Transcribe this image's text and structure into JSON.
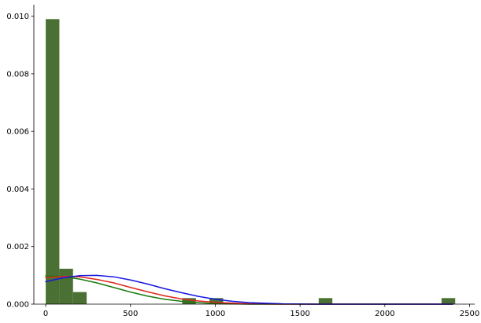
{
  "chart_data": {
    "type": "bar",
    "title": "",
    "xlabel": "",
    "ylabel": "",
    "xlim": [
      -70,
      2530
    ],
    "ylim": [
      0,
      0.0104
    ],
    "grid": false,
    "bar_color": "#4a7133",
    "bins": [
      {
        "x0": 0,
        "x1": 80.5,
        "value": 0.0099
      },
      {
        "x0": 80.5,
        "x1": 161,
        "value": 0.00123
      },
      {
        "x0": 161,
        "x1": 241.5,
        "value": 0.00042
      },
      {
        "x0": 805,
        "x1": 885.5,
        "value": 0.00021
      },
      {
        "x0": 966,
        "x1": 1046.5,
        "value": 0.00021
      },
      {
        "x0": 1610,
        "x1": 1690.5,
        "value": 0.00021
      },
      {
        "x0": 2334.5,
        "x1": 2415,
        "value": 0.00021
      }
    ],
    "series": [
      {
        "color": "#1a7a0f",
        "x": [
          0,
          100,
          200,
          300,
          400,
          500,
          600,
          700,
          800,
          900,
          1000,
          1200,
          1400,
          2400
        ],
        "values": [
          0.00098,
          0.00096,
          0.00087,
          0.00074,
          0.00058,
          0.00042,
          0.00028,
          0.00017,
          0.0001,
          5e-05,
          2e-05,
          0.0,
          0.0,
          0.0
        ]
      },
      {
        "color": "#e0261b",
        "x": [
          0,
          100,
          200,
          300,
          400,
          500,
          600,
          700,
          800,
          900,
          1000,
          1200,
          1400,
          2400
        ],
        "values": [
          0.00092,
          0.00096,
          0.00095,
          0.00086,
          0.00074,
          0.00058,
          0.00043,
          0.00029,
          0.00018,
          0.00011,
          6e-05,
          1e-05,
          0.0,
          0.0
        ]
      },
      {
        "color": "#1515e0",
        "x": [
          0,
          100,
          200,
          300,
          400,
          500,
          600,
          700,
          800,
          900,
          1000,
          1100,
          1200,
          1400,
          1600,
          2400
        ],
        "values": [
          0.00078,
          0.00091,
          0.00099,
          0.001,
          0.00095,
          0.00084,
          0.0007,
          0.00054,
          0.0004,
          0.00027,
          0.00017,
          0.0001,
          5e-05,
          1e-05,
          0.0,
          0.0
        ]
      }
    ],
    "x_ticks": [
      0,
      500,
      1000,
      1500,
      2000,
      2500
    ],
    "x_tick_labels": [
      "0",
      "500",
      "1000",
      "1500",
      "2000",
      "2500"
    ],
    "y_ticks": [
      0,
      0.002,
      0.004,
      0.006,
      0.008,
      0.01
    ],
    "y_tick_labels": [
      "0.000",
      "0.002",
      "0.004",
      "0.006",
      "0.008",
      "0.010"
    ]
  }
}
